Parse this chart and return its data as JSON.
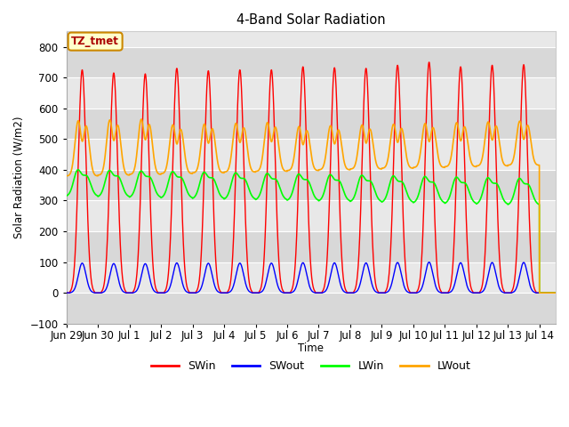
{
  "title": "4-Band Solar Radiation",
  "ylabel": "Solar Radiation (W/m2)",
  "xlabel": "Time",
  "annotation": "TZ_tmet",
  "ylim": [
    -100,
    850
  ],
  "legend": [
    "SWin",
    "SWout",
    "LWin",
    "LWout"
  ],
  "colors": [
    "red",
    "blue",
    "#00ff00",
    "orange"
  ],
  "tick_labels": [
    "Jun 29",
    "Jun 30",
    "Jul 1",
    "Jul 2",
    "Jul 3",
    "Jul 4",
    "Jul 5",
    "Jul 6",
    "Jul 7",
    "Jul 8",
    "Jul 9",
    "Jul 10",
    "Jul 11",
    "Jul 12",
    "Jul 13",
    "Jul 14"
  ],
  "band_colors": [
    "#e8e8e8",
    "#d8d8d8"
  ],
  "plot_bg": "#e8e8e8",
  "fig_bg": "#ffffff",
  "grid_color": "#ffffff"
}
